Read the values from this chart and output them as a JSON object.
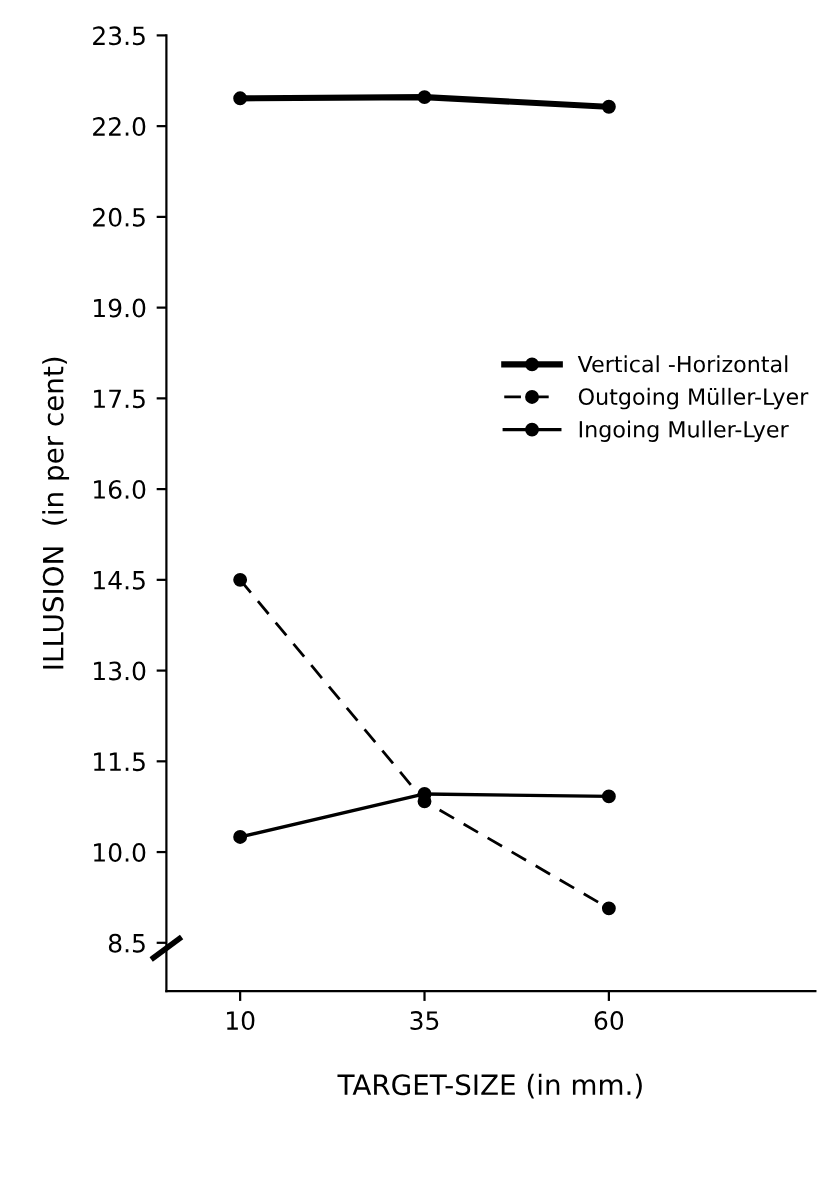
{
  "chart_data": {
    "type": "line",
    "xlabel": "TARGET-SIZE (in mm.)",
    "ylabel": "ILLUSION  (in per cent)",
    "x": [
      10,
      35,
      60
    ],
    "series": [
      {
        "name": "Vertical -Horizontal",
        "color": "#000000",
        "values": [
          22.46,
          22.48,
          22.32
        ],
        "line_style": "solid"
      },
      {
        "name": "Outgoing Müller-Lyer",
        "color": "#000000",
        "values": [
          14.5,
          10.84,
          9.07
        ],
        "line_style": "dashed"
      },
      {
        "name": "Ingoing Muller-Lyer",
        "color": "#000000",
        "values": [
          10.25,
          10.96,
          10.92
        ],
        "line_style": "solid"
      }
    ],
    "xlim": [
      0,
      88
    ],
    "ylim": [
      7.7,
      23.5
    ],
    "xticks": [
      10,
      35,
      60
    ],
    "yticks": [
      8.5,
      {
        "value": 10,
        "label": "10.0"
      },
      11.5,
      {
        "value": 13,
        "label": "13.0"
      },
      14.5,
      {
        "value": 16,
        "label": "16.0"
      },
      17.5,
      {
        "value": 19,
        "label": "19.0"
      },
      20.5,
      {
        "value": 22,
        "label": "22.0"
      },
      23.5
    ],
    "marker": "circle",
    "grid": false,
    "legend": "center right"
  }
}
